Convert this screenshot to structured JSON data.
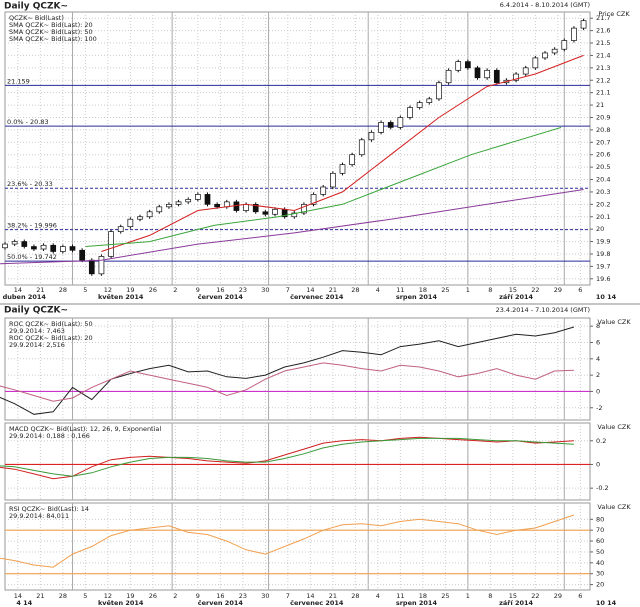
{
  "chart_data": [
    {
      "type": "candlestick",
      "title": "Daily QCZK~",
      "subtitle": "6.4.2014 - 8.10.2014 (GMT)",
      "y_label": "Price CZK",
      "xlim": [
        10,
        192
      ],
      "ylim": [
        19.55,
        21.75
      ],
      "yticks": [
        19.6,
        19.7,
        19.8,
        19.9,
        20,
        20.1,
        20.2,
        20.3,
        20.4,
        20.5,
        20.6,
        20.7,
        20.8,
        20.9,
        21,
        21.1,
        21.2,
        21.3,
        21.4,
        21.5,
        21.6,
        21.7
      ],
      "xticks": [
        14,
        21,
        28,
        {
          "value": 35,
          "label": "5"
        },
        {
          "value": 42,
          "label": "12"
        },
        {
          "value": 49,
          "label": "19"
        },
        {
          "value": 56,
          "label": "26"
        },
        {
          "value": 63,
          "label": "2"
        },
        {
          "value": 70,
          "label": "9"
        },
        {
          "value": 77,
          "label": "16"
        },
        {
          "value": 84,
          "label": "23"
        },
        {
          "value": 91,
          "label": "30"
        },
        {
          "value": 98,
          "label": "7"
        },
        {
          "value": 105,
          "label": "14"
        },
        {
          "value": 112,
          "label": "21"
        },
        {
          "value": 119,
          "label": "28"
        },
        {
          "value": 126,
          "label": "4"
        },
        {
          "value": 133,
          "label": "11"
        },
        {
          "value": 140,
          "label": "18"
        },
        {
          "value": 147,
          "label": "25"
        },
        {
          "value": 154,
          "label": "1"
        },
        {
          "value": 161,
          "label": "8"
        },
        {
          "value": 168,
          "label": "15"
        },
        {
          "value": 175,
          "label": "22"
        },
        {
          "value": 182,
          "label": "29"
        },
        {
          "value": 189,
          "label": "6"
        }
      ],
      "month_ticks": [
        {
          "value": 1,
          "label": "duben 2014"
        },
        {
          "value": 31,
          "label": "květen 2014"
        },
        {
          "value": 62,
          "label": "červen 2014"
        },
        {
          "value": 92,
          "label": "červenec 2014"
        },
        {
          "value": 123,
          "label": "srpen 2014"
        },
        {
          "value": 154,
          "label": "září 2014"
        },
        {
          "value": 184,
          "label": "10 14"
        }
      ],
      "grid": true,
      "levels": [
        {
          "value": 21.159,
          "label": "21.159",
          "style": "solid"
        },
        {
          "value": 20.83,
          "label": "0.0% - 20.83",
          "style": "solid"
        },
        {
          "value": 20.33,
          "label": "23.6% - 20.33",
          "style": "dashed"
        },
        {
          "value": 19.996,
          "label": "38.2% - 19.996",
          "style": "dashed"
        },
        {
          "value": 19.742,
          "label": "50.0% - 19.742",
          "style": "solid"
        }
      ],
      "level_color": "#2a2a9a",
      "series": [
        {
          "name": "QCZK~ Bid(Last)",
          "kind": "candles",
          "color": "#111111",
          "x": [
            7,
            10,
            13,
            16,
            19,
            22,
            25,
            28,
            31,
            34,
            37,
            40,
            43,
            46,
            49,
            52,
            55,
            58,
            61,
            64,
            67,
            70,
            73,
            76,
            79,
            82,
            85,
            88,
            91,
            94,
            97,
            100,
            103,
            106,
            109,
            112,
            115,
            118,
            121,
            124,
            127,
            130,
            133,
            136,
            139,
            142,
            145,
            148,
            151,
            154,
            157,
            160,
            163,
            166,
            169,
            172,
            175,
            178,
            181,
            184,
            187,
            190
          ],
          "values": [
            19.85,
            19.88,
            19.9,
            19.86,
            19.84,
            19.87,
            19.82,
            19.86,
            19.83,
            19.75,
            19.64,
            19.78,
            19.98,
            20.02,
            20.08,
            20.1,
            20.14,
            20.18,
            20.2,
            20.22,
            20.24,
            20.28,
            20.2,
            20.18,
            20.22,
            20.15,
            20.2,
            20.14,
            20.12,
            20.16,
            20.1,
            20.13,
            20.2,
            20.28,
            20.34,
            20.45,
            20.52,
            20.6,
            20.72,
            20.78,
            20.86,
            20.82,
            20.9,
            20.98,
            21.02,
            21.05,
            21.18,
            21.28,
            21.35,
            21.3,
            21.22,
            21.28,
            21.18,
            21.2,
            21.25,
            21.3,
            21.38,
            21.42,
            21.45,
            21.52,
            21.62,
            21.68
          ]
        },
        {
          "name": "SMA QCZK~ Bid(Last): 20",
          "kind": "line",
          "color": "#d42020",
          "x": [
            40,
            55,
            70,
            85,
            100,
            115,
            130,
            145,
            160,
            175,
            190
          ],
          "values": [
            19.82,
            19.95,
            20.15,
            20.2,
            20.15,
            20.3,
            20.6,
            20.9,
            21.15,
            21.25,
            21.4
          ]
        },
        {
          "name": "SMA QCZK~ Bid(Last): 50",
          "kind": "line",
          "color": "#3aa53a",
          "x": [
            35,
            55,
            75,
            95,
            115,
            135,
            155,
            183
          ],
          "values": [
            19.86,
            19.9,
            20.03,
            20.1,
            20.2,
            20.4,
            20.6,
            20.82
          ]
        },
        {
          "name": "SMA QCZK~ Bid(Last): 100",
          "kind": "line",
          "color": "#8a3a9a",
          "x": [
            7,
            40,
            70,
            100,
            130,
            160,
            190
          ],
          "values": [
            19.72,
            19.75,
            19.88,
            19.97,
            20.08,
            20.2,
            20.32
          ]
        }
      ]
    },
    {
      "type": "line",
      "title": "Daily QCZK~",
      "subtitle": "23.4.2014 - 7.10.2014 (GMT)",
      "y_label": "Value CZK",
      "xlim": [
        10,
        192
      ],
      "ylim": [
        -3.5,
        9
      ],
      "yticks": [
        -2,
        0,
        2,
        4,
        6,
        8
      ],
      "grid": true,
      "refs": [
        {
          "value": 0,
          "color": "#cc33cc"
        }
      ],
      "series": [
        {
          "name": "ROC QCZK~ Bid(Last): 50",
          "last_label": "29.9.2014: 7,463",
          "color": "#222222",
          "x": [
            7,
            13,
            19,
            25,
            31,
            37,
            43,
            49,
            55,
            61,
            67,
            73,
            79,
            85,
            91,
            97,
            103,
            109,
            115,
            121,
            127,
            133,
            139,
            145,
            151,
            157,
            163,
            169,
            175,
            181,
            187
          ],
          "values": [
            -0.5,
            -1.5,
            -2.8,
            -2.5,
            0.5,
            -1,
            1.5,
            2.2,
            2.8,
            3.2,
            2.4,
            2.5,
            1.8,
            1.6,
            2.0,
            3.0,
            3.5,
            4.2,
            5.0,
            4.8,
            4.5,
            5.5,
            5.8,
            6.2,
            5.5,
            6.0,
            6.5,
            7.0,
            6.8,
            7.2,
            7.9
          ]
        },
        {
          "name": "ROC QCZK~ Bid(Last): 20",
          "last_label": "29.9.2014: 2,516",
          "color": "#c06080",
          "x": [
            7,
            13,
            19,
            25,
            31,
            37,
            43,
            49,
            55,
            61,
            67,
            73,
            79,
            85,
            91,
            97,
            103,
            109,
            115,
            121,
            127,
            133,
            139,
            145,
            151,
            157,
            163,
            169,
            175,
            181,
            187
          ],
          "values": [
            0.8,
            0.2,
            -0.5,
            -1.2,
            -0.8,
            0.5,
            1.5,
            2.5,
            2.0,
            1.5,
            1.0,
            0.5,
            -0.5,
            0.2,
            1.5,
            2.5,
            3.0,
            3.5,
            3.2,
            2.8,
            2.5,
            3.2,
            3.0,
            2.5,
            1.8,
            2.2,
            2.8,
            2.0,
            1.5,
            2.5,
            2.6
          ]
        }
      ]
    },
    {
      "type": "line",
      "title": "MACD QCZK~ Bid(Last): 12, 26, 9, Exponential",
      "y_label": "Value CZK",
      "xlim": [
        10,
        192
      ],
      "ylim": [
        -0.3,
        0.35
      ],
      "yticks": [
        -0.2,
        0,
        0.2
      ],
      "grid": true,
      "refs": [
        {
          "value": 0,
          "color": "#dd2222"
        }
      ],
      "series": [
        {
          "name": "29.9.2014: 0,188 : 0,166",
          "color": "#d02020",
          "x": [
            7,
            13,
            19,
            25,
            31,
            37,
            43,
            49,
            55,
            61,
            67,
            73,
            79,
            85,
            91,
            97,
            103,
            109,
            115,
            121,
            127,
            133,
            139,
            145,
            151,
            157,
            163,
            169,
            175,
            181,
            187
          ],
          "values": [
            -0.02,
            -0.04,
            -0.08,
            -0.12,
            -0.1,
            -0.02,
            0.04,
            0.06,
            0.07,
            0.06,
            0.05,
            0.03,
            0.02,
            0.01,
            0.03,
            0.08,
            0.13,
            0.18,
            0.2,
            0.21,
            0.2,
            0.22,
            0.23,
            0.22,
            0.21,
            0.2,
            0.19,
            0.2,
            0.18,
            0.19,
            0.2
          ]
        },
        {
          "color": "#3a9a3a",
          "x": [
            7,
            13,
            19,
            25,
            31,
            37,
            43,
            49,
            55,
            61,
            67,
            73,
            79,
            85,
            91,
            97,
            103,
            109,
            115,
            121,
            127,
            133,
            139,
            145,
            151,
            157,
            163,
            169,
            175,
            181,
            187
          ],
          "values": [
            -0.01,
            -0.02,
            -0.05,
            -0.08,
            -0.1,
            -0.07,
            -0.02,
            0.02,
            0.05,
            0.06,
            0.06,
            0.05,
            0.03,
            0.02,
            0.02,
            0.05,
            0.09,
            0.14,
            0.17,
            0.19,
            0.2,
            0.21,
            0.22,
            0.22,
            0.22,
            0.21,
            0.2,
            0.2,
            0.19,
            0.18,
            0.17
          ]
        }
      ]
    },
    {
      "type": "line",
      "title": "RSI QCZK~ Bid(Last): 14",
      "y_label": "Value CZK",
      "xlim": [
        10,
        192
      ],
      "ylim": [
        15,
        95
      ],
      "yticks": [
        20,
        30,
        40,
        50,
        60,
        70,
        80
      ],
      "grid": true,
      "refs": [
        {
          "value": 70,
          "color": "#f0a050"
        },
        {
          "value": 30,
          "color": "#f0a050"
        }
      ],
      "month_ticks": [
        {
          "value": 1,
          "label": "4 14"
        },
        {
          "value": 31,
          "label": "květen 2014"
        },
        {
          "value": 62,
          "label": "červen 2014"
        },
        {
          "value": 92,
          "label": "červenec 2014"
        },
        {
          "value": 123,
          "label": "srpen 2014"
        },
        {
          "value": 154,
          "label": "září 2014"
        },
        {
          "value": 184,
          "label": "10 14"
        }
      ],
      "series": [
        {
          "name": "29.9.2014: 84,011",
          "color": "#f0a050",
          "x": [
            7,
            13,
            19,
            25,
            31,
            37,
            43,
            49,
            55,
            61,
            67,
            73,
            79,
            85,
            91,
            97,
            103,
            109,
            115,
            121,
            127,
            133,
            139,
            145,
            151,
            157,
            163,
            169,
            175,
            181,
            187
          ],
          "values": [
            45,
            42,
            38,
            36,
            48,
            55,
            65,
            70,
            72,
            74,
            68,
            66,
            60,
            52,
            48,
            55,
            62,
            70,
            75,
            76,
            74,
            78,
            80,
            78,
            76,
            70,
            66,
            70,
            72,
            78,
            84
          ]
        }
      ]
    }
  ]
}
